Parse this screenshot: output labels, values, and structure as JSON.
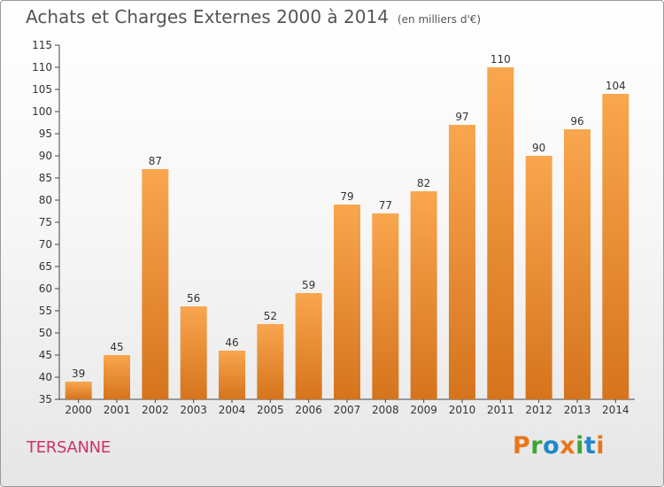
{
  "chart_data": {
    "type": "bar",
    "title": "Achats et Charges Externes 2000 à 2014",
    "subtitle": "(en milliers d'€)",
    "xlabel": "",
    "ylabel": "",
    "categories": [
      "2000",
      "2001",
      "2002",
      "2003",
      "2004",
      "2005",
      "2006",
      "2007",
      "2008",
      "2009",
      "2010",
      "2011",
      "2012",
      "2013",
      "2014"
    ],
    "values": [
      39,
      45,
      87,
      56,
      46,
      52,
      59,
      79,
      77,
      82,
      97,
      110,
      90,
      96,
      104
    ],
    "ylim": [
      35,
      115
    ],
    "yticks": [
      35,
      40,
      45,
      50,
      55,
      60,
      65,
      70,
      75,
      80,
      85,
      90,
      95,
      100,
      105,
      110,
      115
    ],
    "grid": false,
    "bar_color_top": "#f9a64e",
    "bar_color_bottom": "#d5741d"
  },
  "footer": {
    "commune": "TERSANNE",
    "brand": "Proxiti",
    "brand_letters": [
      "P",
      "r",
      "o",
      "x",
      "i",
      "t",
      "i"
    ],
    "brand_colors": [
      "#e8761c",
      "#3fa535",
      "#1e88c9",
      "#e8761c",
      "#3fa535",
      "#1e88c9",
      "#e8761c"
    ]
  }
}
